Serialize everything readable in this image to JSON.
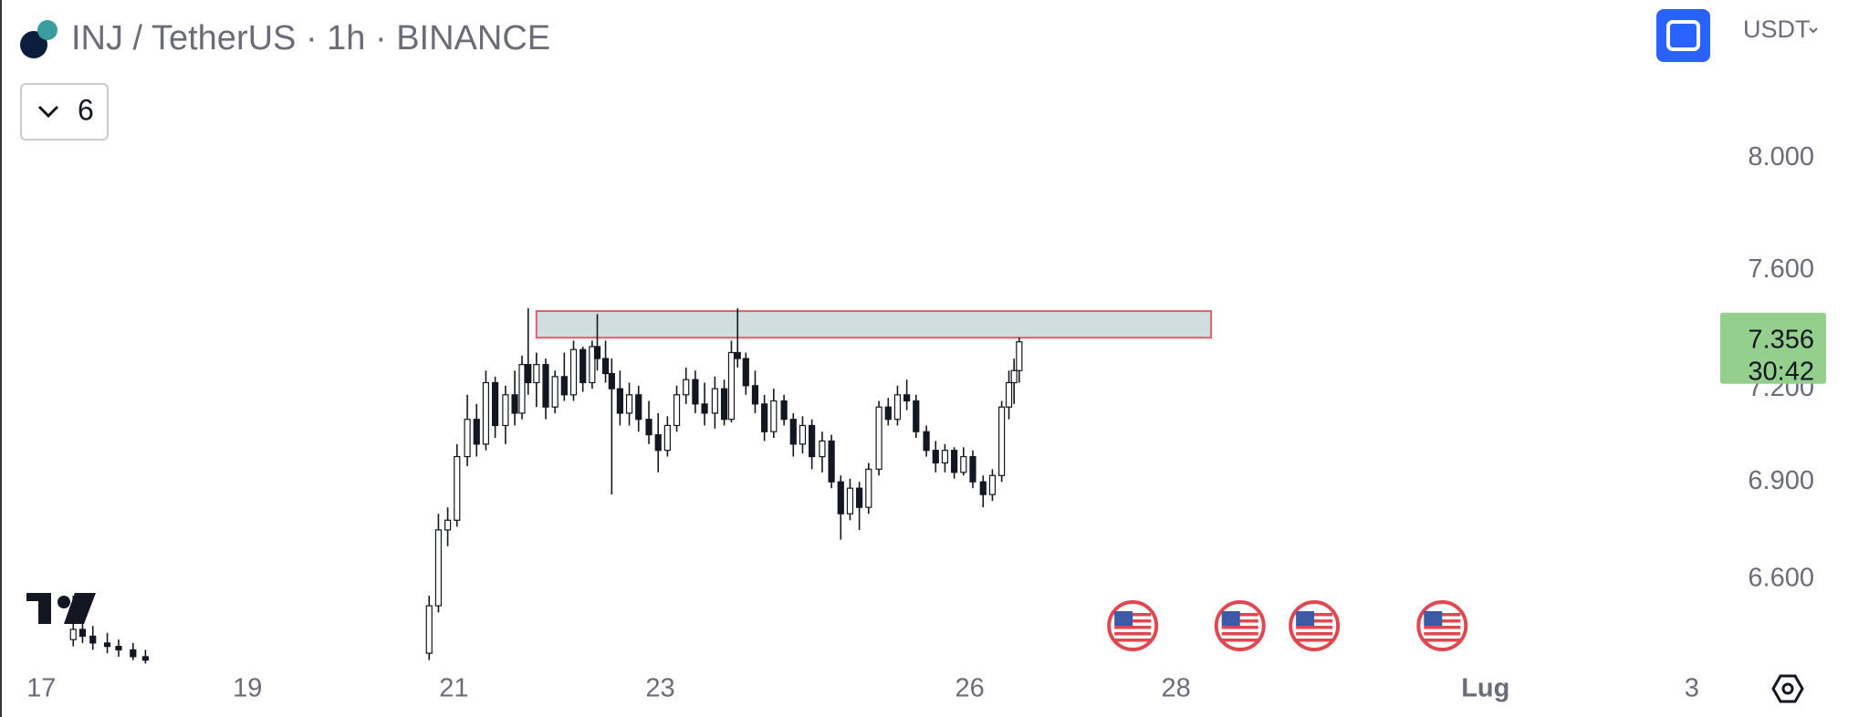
{
  "chart_data": {
    "type": "candlestick",
    "title": "INJ / TetherUS · 1h · BINANCE",
    "currency": "USDT",
    "indicators_count": 6,
    "countdown": "30:42",
    "last_price": 7.356,
    "last_price_color": "#94cf8e",
    "log_scale": true,
    "color": "#131722",
    "xlim": [
      16.6,
      33.24
    ],
    "ylim": [
      6.33,
      8.6
    ],
    "xticks": [
      17,
      19,
      21,
      23,
      26,
      28,
      {
        "value": 31,
        "label": "Lug"
      },
      {
        "value": 33,
        "label": "3"
      }
    ],
    "yticks": [
      {
        "value": 6.6,
        "label": "6.600"
      },
      {
        "value": 6.9,
        "label": "6.900"
      },
      {
        "value": 7.2,
        "label": "7.200"
      },
      {
        "value": 7.6,
        "label": "7.600"
      },
      {
        "value": 8,
        "label": "8.000"
      }
    ],
    "x": [
      17.31,
      17.4,
      17.5,
      17.64,
      17.75,
      17.89,
      18.01,
      20.76,
      20.85,
      20.94,
      21.03,
      21.13,
      21.22,
      21.31,
      21.4,
      21.5,
      21.59,
      21.66,
      21.72,
      21.8,
      21.89,
      21.98,
      22.07,
      22.16,
      22.25,
      22.34,
      22.39,
      22.47,
      22.53,
      22.61,
      22.7,
      22.79,
      22.89,
      22.98,
      23.07,
      23.16,
      23.25,
      23.34,
      23.43,
      23.53,
      23.62,
      23.69,
      23.75,
      23.83,
      23.92,
      24.01,
      24.1,
      24.2,
      24.29,
      24.38,
      24.47,
      24.57,
      24.66,
      24.75,
      24.84,
      24.93,
      25.02,
      25.12,
      25.21,
      25.3,
      25.39,
      25.48,
      25.58,
      25.67,
      25.76,
      25.85,
      25.94,
      26.03,
      26.13,
      26.22,
      26.31,
      26.38,
      26.43,
      26.48
    ],
    "open": [
      6.42,
      6.45,
      6.43,
      6.41,
      6.4,
      6.39,
      6.37,
      6.38,
      6.52,
      6.75,
      6.78,
      6.98,
      7.1,
      7.02,
      7.22,
      7.08,
      7.18,
      7.12,
      7.28,
      7.22,
      7.28,
      7.14,
      7.24,
      7.18,
      7.33,
      7.22,
      7.34,
      7.3,
      7.25,
      7.2,
      7.12,
      7.18,
      7.1,
      7.05,
      7.0,
      7.08,
      7.18,
      7.23,
      7.15,
      7.12,
      7.2,
      7.1,
      7.32,
      7.3,
      7.21,
      7.15,
      7.06,
      7.16,
      7.1,
      7.02,
      7.08,
      6.98,
      7.03,
      6.9,
      6.8,
      6.88,
      6.82,
      6.94,
      7.14,
      7.1,
      7.18,
      7.16,
      7.06,
      7.0,
      6.96,
      7.0,
      6.93,
      6.98,
      6.9,
      6.86,
      6.92,
      7.14,
      7.22,
      7.26
    ],
    "high": [
      6.55,
      6.49,
      6.46,
      6.44,
      6.42,
      6.41,
      6.39,
      6.55,
      6.8,
      6.82,
      7.02,
      7.18,
      7.15,
      7.26,
      7.24,
      7.21,
      7.26,
      7.31,
      7.47,
      7.32,
      7.3,
      7.26,
      7.32,
      7.36,
      7.34,
      7.36,
      7.45,
      7.36,
      7.3,
      7.26,
      7.22,
      7.21,
      7.16,
      7.12,
      7.11,
      7.21,
      7.27,
      7.26,
      7.22,
      7.24,
      7.23,
      7.36,
      7.47,
      7.32,
      7.26,
      7.18,
      7.2,
      7.18,
      7.12,
      7.11,
      7.1,
      7.06,
      7.05,
      6.92,
      6.91,
      6.9,
      6.96,
      7.16,
      7.17,
      7.21,
      7.23,
      7.18,
      7.08,
      7.03,
      7.02,
      7.01,
      7.01,
      7.0,
      6.92,
      6.94,
      7.16,
      7.26,
      7.3,
      7.37
    ],
    "low": [
      6.4,
      6.41,
      6.39,
      6.38,
      6.37,
      6.36,
      6.35,
      6.36,
      6.5,
      6.7,
      6.76,
      6.95,
      6.98,
      7.0,
      7.04,
      7.02,
      7.08,
      7.1,
      7.18,
      7.14,
      7.1,
      7.12,
      7.16,
      7.16,
      7.19,
      7.2,
      7.26,
      7.22,
      6.86,
      7.08,
      7.08,
      7.06,
      7.02,
      6.93,
      6.98,
      7.06,
      7.15,
      7.12,
      7.08,
      7.07,
      7.08,
      7.09,
      7.27,
      7.18,
      7.12,
      7.03,
      7.04,
      7.08,
      6.98,
      6.99,
      6.94,
      6.93,
      6.88,
      6.72,
      6.78,
      6.75,
      6.8,
      6.92,
      7.08,
      7.08,
      7.13,
      7.04,
      6.98,
      6.93,
      6.93,
      6.91,
      6.92,
      6.88,
      6.82,
      6.84,
      6.9,
      7.1,
      7.15,
      7.22
    ],
    "close": [
      6.45,
      6.43,
      6.41,
      6.4,
      6.39,
      6.37,
      6.36,
      6.52,
      6.75,
      6.78,
      6.98,
      7.1,
      7.02,
      7.22,
      7.08,
      7.18,
      7.12,
      7.28,
      7.22,
      7.28,
      7.14,
      7.24,
      7.18,
      7.33,
      7.22,
      7.34,
      7.3,
      7.25,
      7.2,
      7.12,
      7.18,
      7.1,
      7.05,
      7.0,
      7.08,
      7.18,
      7.23,
      7.15,
      7.12,
      7.2,
      7.1,
      7.32,
      7.3,
      7.21,
      7.15,
      7.06,
      7.16,
      7.1,
      7.02,
      7.08,
      6.98,
      7.03,
      6.9,
      6.8,
      6.88,
      6.82,
      6.94,
      7.14,
      7.1,
      7.18,
      7.16,
      7.06,
      7.0,
      6.96,
      7.0,
      6.93,
      6.98,
      6.9,
      6.86,
      6.92,
      7.14,
      7.22,
      7.26,
      7.356
    ],
    "zone": {
      "x": [
        21.8,
        28.34
      ],
      "y": [
        7.37,
        7.46
      ],
      "fill": "#d1dedf",
      "stroke": "#e0606a"
    },
    "events_x": [
      27.58,
      28.62,
      29.34,
      30.58
    ]
  }
}
